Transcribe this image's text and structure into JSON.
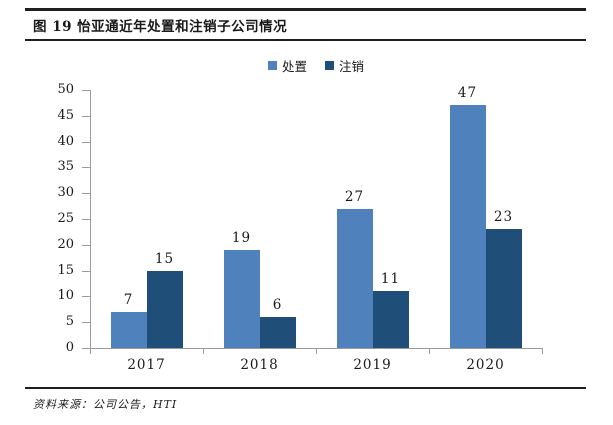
{
  "figure": {
    "title": "图 19 怡亚通近年处置和注销子公司情况",
    "source": "资料来源：公司公告，HTI"
  },
  "chart_data": {
    "type": "bar",
    "title": "",
    "categories": [
      "2017",
      "2018",
      "2019",
      "2020"
    ],
    "series": [
      {
        "name": "处置",
        "color": "#4F81BD",
        "values": [
          7,
          19,
          27,
          47
        ]
      },
      {
        "name": "注销",
        "color": "#1F4E79",
        "values": [
          15,
          6,
          11,
          23
        ]
      }
    ],
    "xlabel": "",
    "ylabel": "",
    "ylim": [
      0,
      50
    ],
    "yticks": [
      0,
      5,
      10,
      15,
      20,
      25,
      30,
      35,
      40,
      45,
      50
    ],
    "grid": false,
    "data_labels": true,
    "legend_position": "top-center",
    "colors": {
      "axis": "#9b9b9b",
      "text": "#1a1a1a",
      "rule": "#1f1f1f"
    }
  }
}
